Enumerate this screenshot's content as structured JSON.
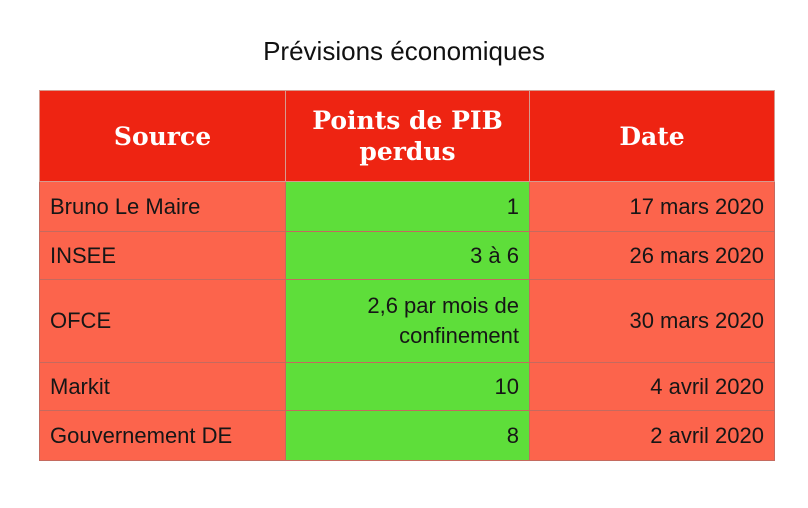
{
  "title": "Prévisions économiques",
  "colors": {
    "header": "#ee2412",
    "row": "#fc644c",
    "highlight": "#5ede3a"
  },
  "table": {
    "headers": [
      "Source",
      "Points de PIB perdus",
      "Date"
    ],
    "rows": [
      {
        "source": "Bruno Le Maire",
        "points": "1",
        "date": "17 mars 2020"
      },
      {
        "source": "INSEE",
        "points": "3 à 6",
        "date": "26 mars 2020"
      },
      {
        "source": "OFCE",
        "points": "2,6 par mois de confinement",
        "date": "30 mars 2020"
      },
      {
        "source": "Markit",
        "points": "10",
        "date": "4 avril 2020"
      },
      {
        "source": "Gouvernement DE",
        "points": "8",
        "date": "2 avril 2020"
      }
    ]
  }
}
